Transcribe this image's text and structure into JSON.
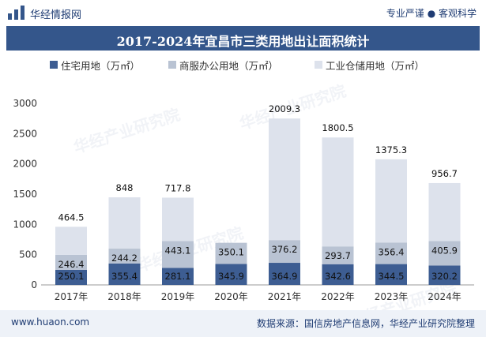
{
  "header": {
    "brand": "华经情报网",
    "slogan": "专业严谨 ● 客观科学"
  },
  "chart_data": {
    "type": "bar",
    "stacked": true,
    "title": "2017-2024年宜昌市三类用地出让面积统计",
    "categories": [
      "2017年",
      "2018年",
      "2019年",
      "2020年",
      "2021年",
      "2022年",
      "2023年",
      "2024年"
    ],
    "series": [
      {
        "name": "住宅用地（万㎡）",
        "color": "#3d5d92",
        "values": [
          250.1,
          355.4,
          281.1,
          345.9,
          364.9,
          342.6,
          344.5,
          320.2
        ]
      },
      {
        "name": "商服办公用地（万㎡）",
        "color": "#b9c3d3",
        "values": [
          246.4,
          244.2,
          443.1,
          350.1,
          376.2,
          293.7,
          356.4,
          405.9
        ]
      },
      {
        "name": "工业仓储用地（万㎡）",
        "color": "#dde2ec",
        "values": [
          464.5,
          848.0,
          717.8,
          null,
          2009.3,
          1800.5,
          1375.3,
          956.7
        ]
      }
    ],
    "yticks": [
      "0",
      "500",
      "1000",
      "1500",
      "2000",
      "2500",
      "3000"
    ],
    "ylim": [
      0,
      3000
    ],
    "grid": false,
    "legend_position": "top"
  },
  "footer": {
    "url": "www.huaon.com",
    "source": "数据来源：国信房地产信息网，华经产业研究院整理"
  }
}
